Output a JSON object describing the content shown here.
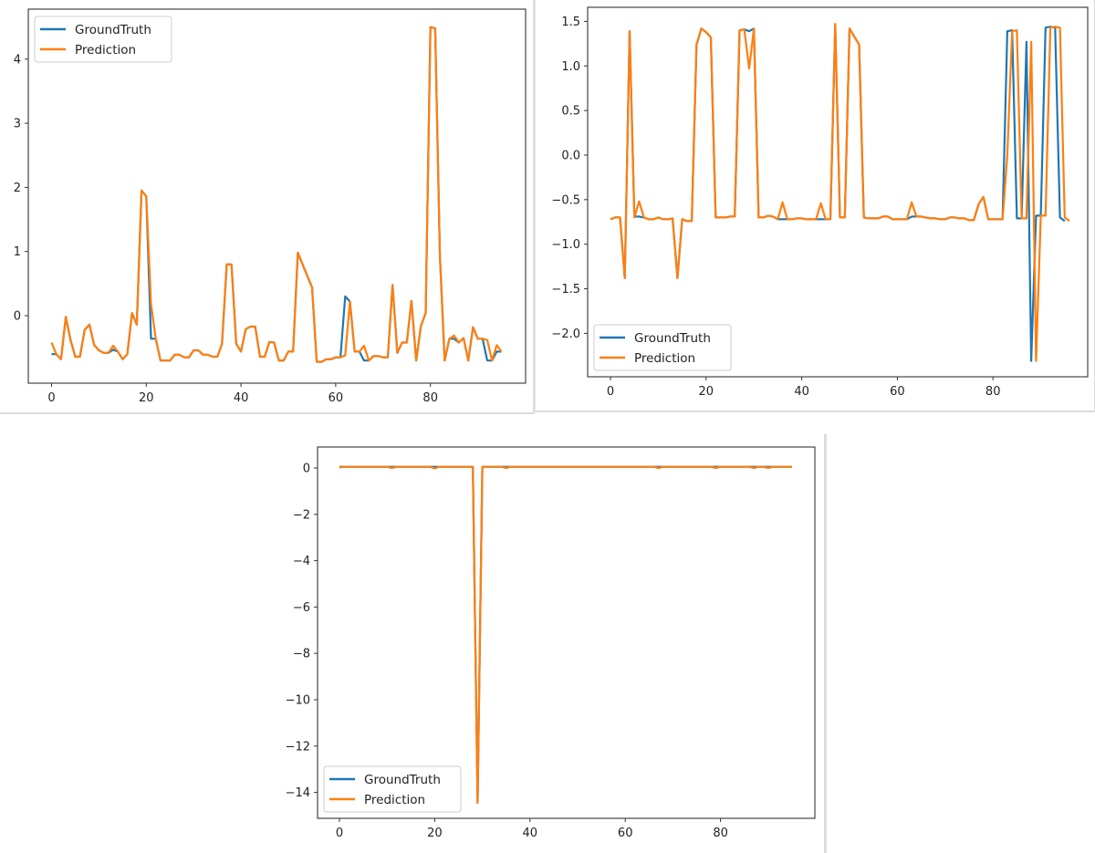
{
  "colors": {
    "ground_truth": "#1f77b4",
    "prediction": "#ff7f0e",
    "axes": "#333333",
    "legend_border": "#cccccc"
  },
  "legend": {
    "ground_truth": "GroundTruth",
    "prediction": "Prediction"
  },
  "chart_data": [
    {
      "type": "line",
      "title": "",
      "xlabel": "",
      "ylabel": "",
      "legend_position": "upper left",
      "grid": false,
      "xlim": [
        -5,
        100
      ],
      "ylim": [
        -1.0,
        4.7
      ],
      "xticks": [
        0,
        20,
        40,
        60,
        80
      ],
      "yticks": [
        0,
        1,
        2,
        3,
        4
      ],
      "series": [
        {
          "name": "GroundTruth",
          "values": [
            -0.6,
            -0.6,
            -0.68,
            -0.02,
            -0.38,
            -0.64,
            -0.64,
            -0.22,
            -0.14,
            -0.46,
            -0.54,
            -0.58,
            -0.58,
            -0.53,
            -0.56,
            -0.68,
            -0.6,
            0.04,
            -0.14,
            1.95,
            1.86,
            -0.36,
            -0.36,
            -0.7,
            -0.7,
            -0.7,
            -0.61,
            -0.61,
            -0.65,
            -0.65,
            -0.54,
            -0.54,
            -0.61,
            -0.61,
            -0.64,
            -0.64,
            -0.44,
            0.8,
            0.8,
            -0.44,
            -0.56,
            -0.21,
            -0.17,
            -0.17,
            -0.64,
            -0.64,
            -0.41,
            -0.42,
            -0.7,
            -0.7,
            -0.56,
            -0.56,
            0.98,
            0.8,
            0.62,
            0.44,
            -0.72,
            -0.72,
            -0.68,
            -0.68,
            -0.65,
            -0.65,
            0.3,
            0.22,
            -0.56,
            -0.56,
            -0.7,
            -0.7,
            -0.63,
            -0.63,
            -0.65,
            -0.65,
            0.48,
            -0.58,
            -0.42,
            -0.42,
            0.23,
            -0.7,
            -0.16,
            0.04,
            4.5,
            4.48,
            0.93,
            -0.7,
            -0.36,
            -0.36,
            -0.42,
            -0.35,
            -0.7,
            -0.18,
            -0.36,
            -0.36,
            -0.7,
            -0.7,
            -0.56,
            -0.56
          ]
        },
        {
          "name": "Prediction",
          "values": [
            -0.42,
            -0.6,
            -0.68,
            -0.02,
            -0.38,
            -0.64,
            -0.64,
            -0.22,
            -0.14,
            -0.46,
            -0.54,
            -0.58,
            -0.58,
            -0.47,
            -0.56,
            -0.68,
            -0.6,
            0.04,
            -0.14,
            1.95,
            1.86,
            0.18,
            -0.36,
            -0.7,
            -0.7,
            -0.7,
            -0.61,
            -0.61,
            -0.65,
            -0.65,
            -0.54,
            -0.54,
            -0.61,
            -0.61,
            -0.64,
            -0.64,
            -0.44,
            0.8,
            0.8,
            -0.44,
            -0.56,
            -0.21,
            -0.17,
            -0.17,
            -0.64,
            -0.64,
            -0.41,
            -0.42,
            -0.7,
            -0.7,
            -0.56,
            -0.56,
            0.98,
            0.8,
            0.62,
            0.44,
            -0.72,
            -0.72,
            -0.68,
            -0.68,
            -0.65,
            -0.65,
            -0.62,
            0.22,
            -0.56,
            -0.56,
            -0.47,
            -0.7,
            -0.63,
            -0.63,
            -0.65,
            -0.65,
            0.48,
            -0.58,
            -0.42,
            -0.42,
            0.23,
            -0.7,
            -0.16,
            0.04,
            4.5,
            4.48,
            0.93,
            -0.7,
            -0.36,
            -0.31,
            -0.42,
            -0.35,
            -0.7,
            -0.18,
            -0.36,
            -0.36,
            -0.38,
            -0.7,
            -0.46,
            -0.56
          ]
        }
      ]
    },
    {
      "type": "line",
      "title": "",
      "xlabel": "",
      "ylabel": "",
      "legend_position": "lower left",
      "grid": false,
      "xlim": [
        -5,
        100
      ],
      "ylim": [
        -2.45,
        1.65
      ],
      "xticks": [
        0,
        20,
        40,
        60,
        80
      ],
      "yticks": [
        -2.0,
        -1.5,
        -1.0,
        -0.5,
        0.0,
        0.5,
        1.0,
        1.5
      ],
      "series": [
        {
          "name": "GroundTruth",
          "values": [
            -0.72,
            -0.7,
            -0.7,
            -1.38,
            1.39,
            -0.69,
            -0.69,
            -0.7,
            -0.72,
            -0.72,
            -0.7,
            -0.72,
            -0.72,
            -0.71,
            -1.38,
            -0.72,
            -0.74,
            -0.74,
            1.24,
            1.42,
            1.38,
            1.32,
            -0.7,
            -0.7,
            -0.7,
            -0.69,
            -0.69,
            1.4,
            1.41,
            1.39,
            1.42,
            -0.7,
            -0.7,
            -0.68,
            -0.69,
            -0.72,
            -0.72,
            -0.72,
            -0.72,
            -0.71,
            -0.71,
            -0.72,
            -0.72,
            -0.72,
            -0.72,
            -0.72,
            -0.72,
            1.47,
            -0.7,
            -0.7,
            1.42,
            1.33,
            1.24,
            -0.7,
            -0.71,
            -0.71,
            -0.71,
            -0.69,
            -0.69,
            -0.72,
            -0.72,
            -0.72,
            -0.72,
            -0.69,
            -0.69,
            -0.69,
            -0.7,
            -0.71,
            -0.71,
            -0.72,
            -0.72,
            -0.7,
            -0.7,
            -0.71,
            -0.71,
            -0.73,
            -0.73,
            -0.55,
            -0.47,
            -0.72,
            -0.72,
            -0.72,
            -0.72,
            1.39,
            1.4,
            -0.71,
            -0.71,
            1.27,
            -2.31,
            -0.68,
            -0.68,
            1.43,
            1.44,
            1.43,
            -0.7,
            -0.74
          ]
        },
        {
          "name": "Prediction",
          "values": [
            -0.72,
            -0.7,
            -0.7,
            -1.38,
            1.39,
            -0.7,
            -0.52,
            -0.7,
            -0.72,
            -0.72,
            -0.7,
            -0.72,
            -0.72,
            -0.71,
            -1.38,
            -0.72,
            -0.74,
            -0.74,
            1.24,
            1.42,
            1.38,
            1.32,
            -0.7,
            -0.7,
            -0.7,
            -0.69,
            -0.69,
            1.4,
            1.41,
            0.97,
            1.42,
            -0.7,
            -0.7,
            -0.68,
            -0.69,
            -0.72,
            -0.53,
            -0.72,
            -0.72,
            -0.71,
            -0.71,
            -0.72,
            -0.72,
            -0.72,
            -0.54,
            -0.72,
            -0.72,
            1.47,
            -0.7,
            -0.7,
            1.42,
            1.33,
            1.24,
            -0.7,
            -0.71,
            -0.71,
            -0.71,
            -0.69,
            -0.69,
            -0.72,
            -0.72,
            -0.72,
            -0.72,
            -0.53,
            -0.69,
            -0.69,
            -0.7,
            -0.71,
            -0.71,
            -0.72,
            -0.72,
            -0.7,
            -0.7,
            -0.71,
            -0.71,
            -0.73,
            -0.73,
            -0.55,
            -0.47,
            -0.72,
            -0.72,
            -0.72,
            -0.72,
            0.0,
            1.39,
            1.4,
            -0.71,
            -0.71,
            1.27,
            -2.31,
            -0.68,
            -0.68,
            1.43,
            1.44,
            1.43,
            -0.7,
            -0.74
          ]
        }
      ]
    },
    {
      "type": "line",
      "title": "",
      "xlabel": "",
      "ylabel": "",
      "legend_position": "lower left",
      "grid": false,
      "xlim": [
        -5,
        100
      ],
      "ylim": [
        -15.1,
        0.8
      ],
      "xticks": [
        0,
        20,
        40,
        60,
        80
      ],
      "yticks": [
        -14,
        -12,
        -10,
        -8,
        -6,
        -4,
        -2,
        0
      ],
      "series": [
        {
          "name": "GroundTruth",
          "values": [
            0.05,
            0.05,
            0.05,
            0.05,
            0.05,
            0.05,
            0.05,
            0.05,
            0.05,
            0.05,
            0.05,
            0.05,
            0.05,
            0.05,
            0.05,
            0.05,
            0.05,
            0.05,
            0.05,
            0.05,
            0.05,
            0.05,
            0.05,
            0.05,
            0.05,
            0.05,
            0.05,
            0.05,
            0.05,
            -14.45,
            0.05,
            0.05,
            0.05,
            0.05,
            0.05,
            0.05,
            0.05,
            0.05,
            0.05,
            0.05,
            0.05,
            0.05,
            0.05,
            0.05,
            0.05,
            0.05,
            0.05,
            0.05,
            0.05,
            0.05,
            0.05,
            0.05,
            0.05,
            0.05,
            0.05,
            0.05,
            0.05,
            0.05,
            0.05,
            0.05,
            0.05,
            0.05,
            0.05,
            0.05,
            0.05,
            0.05,
            0.05,
            0.05,
            0.05,
            0.05,
            0.05,
            0.05,
            0.05,
            0.05,
            0.05,
            0.05,
            0.05,
            0.05,
            0.05,
            0.05,
            0.05,
            0.05,
            0.05,
            0.05,
            0.05,
            0.05,
            0.05,
            0.05,
            0.05,
            0.05,
            0.05,
            0.05,
            0.05,
            0.05,
            0.05,
            0.05
          ]
        },
        {
          "name": "Prediction",
          "values": [
            0.02,
            0.05,
            0.05,
            0.05,
            0.05,
            0.05,
            0.05,
            0.05,
            0.05,
            0.05,
            0.05,
            0.0,
            0.05,
            0.05,
            0.05,
            0.05,
            0.05,
            0.05,
            0.05,
            0.05,
            -0.02,
            0.05,
            0.05,
            0.05,
            0.05,
            0.05,
            0.05,
            0.05,
            0.05,
            -14.45,
            0.05,
            0.05,
            0.05,
            0.05,
            0.05,
            0.0,
            0.05,
            0.05,
            0.05,
            0.05,
            0.05,
            0.05,
            0.05,
            0.05,
            0.05,
            0.05,
            0.05,
            0.05,
            0.05,
            0.05,
            0.05,
            0.05,
            0.05,
            0.05,
            0.05,
            0.05,
            0.05,
            0.05,
            0.05,
            0.05,
            0.05,
            0.05,
            0.05,
            0.05,
            0.05,
            0.05,
            0.05,
            0.0,
            0.05,
            0.05,
            0.05,
            0.05,
            0.05,
            0.05,
            0.05,
            0.05,
            0.05,
            0.05,
            0.05,
            0.0,
            0.05,
            0.05,
            0.05,
            0.05,
            0.05,
            0.05,
            0.05,
            0.0,
            0.05,
            0.05,
            0.0,
            0.05,
            0.05,
            0.05,
            0.05,
            0.05
          ]
        }
      ]
    }
  ]
}
